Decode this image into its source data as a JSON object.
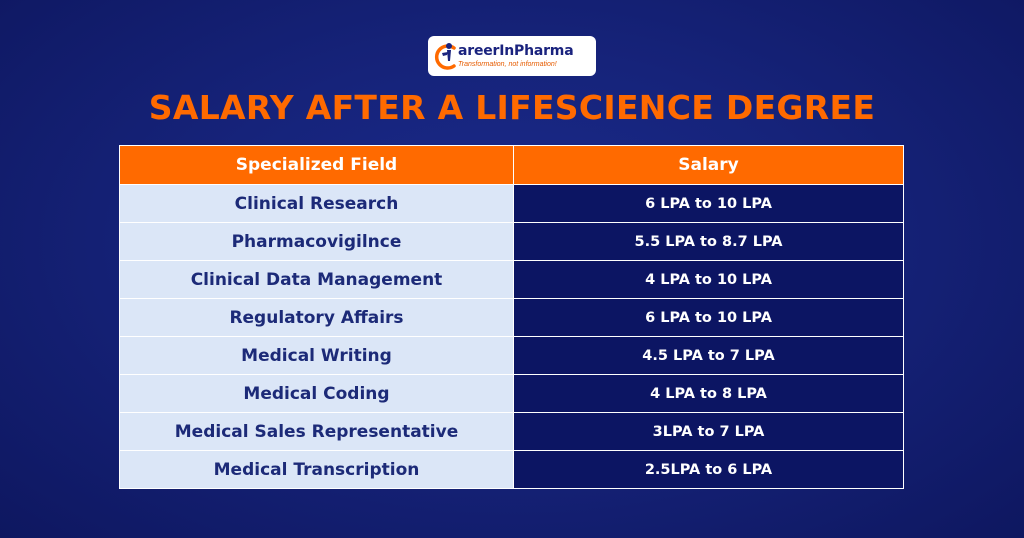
{
  "logo": {
    "name": "areerInPharma",
    "tagline": "Transformation, not information!"
  },
  "title": "SALARY AFTER A LIFESCIENCE DEGREE",
  "table": {
    "headers": [
      "Specialized Field",
      "Salary"
    ],
    "rows": [
      {
        "field": "Clinical Research",
        "salary": "6 LPA to 10 LPA"
      },
      {
        "field": "Pharmacovigilnce",
        "salary": "5.5 LPA to 8.7 LPA"
      },
      {
        "field": "Clinical Data Management",
        "salary": "4 LPA to 10 LPA"
      },
      {
        "field": "Regulatory Affairs",
        "salary": "6 LPA to 10 LPA"
      },
      {
        "field": "Medical Writing",
        "salary": "4.5 LPA to 7 LPA"
      },
      {
        "field": "Medical Coding",
        "salary": "4 LPA to 8 LPA"
      },
      {
        "field": "Medical Sales Representative",
        "salary": "3LPA to 7 LPA"
      },
      {
        "field": "Medical Transcription",
        "salary": "2.5LPA to 6 LPA"
      }
    ]
  },
  "colors": {
    "background": "#16237a",
    "accent_orange": "#ff6a00",
    "field_cell": "#dbe6f7",
    "salary_cell": "#0c1563",
    "logo_text": "#1a237e"
  }
}
